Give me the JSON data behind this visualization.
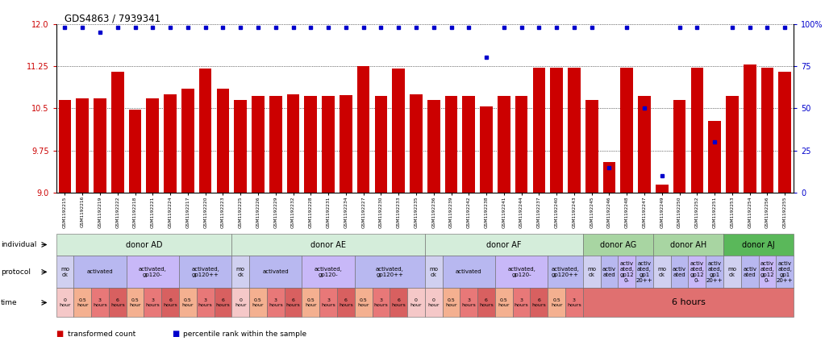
{
  "title": "GDS4863 / 7939341",
  "sample_ids": [
    "GSM1192215",
    "GSM1192216",
    "GSM1192219",
    "GSM1192222",
    "GSM1192218",
    "GSM1192221",
    "GSM1192224",
    "GSM1192217",
    "GSM1192220",
    "GSM1192223",
    "GSM1192225",
    "GSM1192226",
    "GSM1192229",
    "GSM1192232",
    "GSM1192228",
    "GSM1192231",
    "GSM1192234",
    "GSM1192227",
    "GSM1192230",
    "GSM1192233",
    "GSM1192235",
    "GSM1192236",
    "GSM1192239",
    "GSM1192242",
    "GSM1192238",
    "GSM1192241",
    "GSM1192244",
    "GSM1192237",
    "GSM1192240",
    "GSM1192243",
    "GSM1192245",
    "GSM1192246",
    "GSM1192248",
    "GSM1192247",
    "GSM1192249",
    "GSM1192250",
    "GSM1192252",
    "GSM1192251",
    "GSM1192253",
    "GSM1192254",
    "GSM1192256",
    "GSM1192255"
  ],
  "bar_values": [
    10.65,
    10.68,
    10.68,
    11.15,
    10.48,
    10.68,
    10.75,
    10.85,
    11.2,
    10.85,
    10.65,
    10.72,
    10.72,
    10.75,
    10.72,
    10.72,
    10.73,
    11.25,
    10.72,
    11.2,
    10.75,
    10.65,
    10.72,
    10.72,
    10.53,
    10.72,
    10.72,
    11.22,
    11.22,
    11.22,
    10.65,
    9.55,
    11.22,
    10.72,
    9.15,
    10.65,
    11.22,
    10.28,
    10.72,
    11.28,
    11.22,
    11.15
  ],
  "percentile_values": [
    98,
    98,
    95,
    98,
    98,
    98,
    98,
    98,
    98,
    98,
    98,
    98,
    98,
    98,
    98,
    98,
    98,
    98,
    98,
    98,
    98,
    98,
    98,
    98,
    80,
    98,
    98,
    98,
    98,
    98,
    98,
    15,
    98,
    50,
    10,
    98,
    98,
    30,
    98,
    98,
    98,
    98
  ],
  "ylim_left": [
    9.0,
    12.0
  ],
  "yticks_left": [
    9.0,
    9.75,
    10.5,
    11.25,
    12.0
  ],
  "ylim_right": [
    0,
    100
  ],
  "yticks_right": [
    0,
    25,
    50,
    75,
    100
  ],
  "bar_color": "#cc0000",
  "percentile_color": "#0000cc",
  "individual_row": [
    {
      "label": "donor AD",
      "start": 0,
      "end": 9,
      "color": "#d4edda"
    },
    {
      "label": "donor AE",
      "start": 10,
      "end": 20,
      "color": "#d4edda"
    },
    {
      "label": "donor AF",
      "start": 21,
      "end": 29,
      "color": "#d4edda"
    },
    {
      "label": "donor AG",
      "start": 30,
      "end": 33,
      "color": "#a8d5a2"
    },
    {
      "label": "donor AH",
      "start": 34,
      "end": 37,
      "color": "#a8d5a2"
    },
    {
      "label": "donor AJ",
      "start": 38,
      "end": 41,
      "color": "#5ab85a"
    }
  ],
  "protocol_row": [
    {
      "label": "mo\nck",
      "start": 0,
      "end": 0,
      "color": "#d0d0f0"
    },
    {
      "label": "activated",
      "start": 1,
      "end": 3,
      "color": "#b8b8f0"
    },
    {
      "label": "activated,\ngp120-",
      "start": 4,
      "end": 6,
      "color": "#c8b8f8"
    },
    {
      "label": "activated,\ngp120++",
      "start": 7,
      "end": 9,
      "color": "#b8b8f0"
    },
    {
      "label": "mo\nck",
      "start": 10,
      "end": 10,
      "color": "#d0d0f0"
    },
    {
      "label": "activated",
      "start": 11,
      "end": 13,
      "color": "#b8b8f0"
    },
    {
      "label": "activated,\ngp120-",
      "start": 14,
      "end": 16,
      "color": "#c8b8f8"
    },
    {
      "label": "activated,\ngp120++",
      "start": 17,
      "end": 20,
      "color": "#b8b8f0"
    },
    {
      "label": "mo\nck",
      "start": 21,
      "end": 21,
      "color": "#d0d0f0"
    },
    {
      "label": "activated",
      "start": 22,
      "end": 24,
      "color": "#b8b8f0"
    },
    {
      "label": "activated,\ngp120-",
      "start": 25,
      "end": 27,
      "color": "#c8b8f8"
    },
    {
      "label": "activated,\ngp120++",
      "start": 28,
      "end": 29,
      "color": "#b8b8f0"
    },
    {
      "label": "mo\nck",
      "start": 30,
      "end": 30,
      "color": "#d0d0f0"
    },
    {
      "label": "activ\nated",
      "start": 31,
      "end": 31,
      "color": "#b8b8f0"
    },
    {
      "label": "activ\nated,\ngp12\n0-",
      "start": 32,
      "end": 32,
      "color": "#c8b8f8"
    },
    {
      "label": "activ\nated,\ngp1\n20++",
      "start": 33,
      "end": 33,
      "color": "#b8b8f0"
    },
    {
      "label": "mo\nck",
      "start": 34,
      "end": 34,
      "color": "#d0d0f0"
    },
    {
      "label": "activ\nated",
      "start": 35,
      "end": 35,
      "color": "#b8b8f0"
    },
    {
      "label": "activ\nated,\ngp12\n0-",
      "start": 36,
      "end": 36,
      "color": "#c8b8f8"
    },
    {
      "label": "activ\nated,\ngp1\n20++",
      "start": 37,
      "end": 37,
      "color": "#b8b8f0"
    },
    {
      "label": "mo\nck",
      "start": 38,
      "end": 38,
      "color": "#d0d0f0"
    },
    {
      "label": "activ\nated",
      "start": 39,
      "end": 39,
      "color": "#b8b8f0"
    },
    {
      "label": "activ\nated,\ngp12\n0-",
      "start": 40,
      "end": 40,
      "color": "#c8b8f8"
    },
    {
      "label": "activ\nated,\ngp1\n20++",
      "start": 41,
      "end": 41,
      "color": "#b8b8f0"
    }
  ],
  "time_cells": [
    {
      "label": "0\nhour",
      "start": 0,
      "end": 0,
      "color": "#f5c8c8"
    },
    {
      "label": "0.5\nhour",
      "start": 1,
      "end": 1,
      "color": "#f4b090"
    },
    {
      "label": "3\nhours",
      "start": 2,
      "end": 2,
      "color": "#e87878"
    },
    {
      "label": "6\nhours",
      "start": 3,
      "end": 3,
      "color": "#d86060"
    },
    {
      "label": "0.5\nhour",
      "start": 4,
      "end": 4,
      "color": "#f4b090"
    },
    {
      "label": "3\nhours",
      "start": 5,
      "end": 5,
      "color": "#e87878"
    },
    {
      "label": "6\nhours",
      "start": 6,
      "end": 6,
      "color": "#d86060"
    },
    {
      "label": "0.5\nhour",
      "start": 7,
      "end": 7,
      "color": "#f4b090"
    },
    {
      "label": "3\nhours",
      "start": 8,
      "end": 8,
      "color": "#e87878"
    },
    {
      "label": "6\nhours",
      "start": 9,
      "end": 9,
      "color": "#d86060"
    },
    {
      "label": "0\nhour",
      "start": 10,
      "end": 10,
      "color": "#f5c8c8"
    },
    {
      "label": "0.5\nhour",
      "start": 11,
      "end": 11,
      "color": "#f4b090"
    },
    {
      "label": "3\nhours",
      "start": 12,
      "end": 12,
      "color": "#e87878"
    },
    {
      "label": "6\nhours",
      "start": 13,
      "end": 13,
      "color": "#d86060"
    },
    {
      "label": "0.5\nhour",
      "start": 14,
      "end": 14,
      "color": "#f4b090"
    },
    {
      "label": "3\nhours",
      "start": 15,
      "end": 15,
      "color": "#e87878"
    },
    {
      "label": "6\nhours",
      "start": 16,
      "end": 16,
      "color": "#d86060"
    },
    {
      "label": "0.5\nhour",
      "start": 17,
      "end": 17,
      "color": "#f4b090"
    },
    {
      "label": "3\nhours",
      "start": 18,
      "end": 18,
      "color": "#e87878"
    },
    {
      "label": "6\nhours",
      "start": 19,
      "end": 19,
      "color": "#d86060"
    },
    {
      "label": "0\nhour",
      "start": 20,
      "end": 20,
      "color": "#f5c8c8"
    },
    {
      "label": "0\nhour",
      "start": 21,
      "end": 21,
      "color": "#f5c8c8"
    },
    {
      "label": "0.5\nhour",
      "start": 22,
      "end": 22,
      "color": "#f4b090"
    },
    {
      "label": "3\nhours",
      "start": 23,
      "end": 23,
      "color": "#e87878"
    },
    {
      "label": "6\nhours",
      "start": 24,
      "end": 24,
      "color": "#d86060"
    },
    {
      "label": "0.5\nhour",
      "start": 25,
      "end": 25,
      "color": "#f4b090"
    },
    {
      "label": "3\nhours",
      "start": 26,
      "end": 26,
      "color": "#e87878"
    },
    {
      "label": "6\nhours",
      "start": 27,
      "end": 27,
      "color": "#d86060"
    },
    {
      "label": "0.5\nhour",
      "start": 28,
      "end": 28,
      "color": "#f4b090"
    },
    {
      "label": "3\nhours",
      "start": 29,
      "end": 29,
      "color": "#e87878"
    }
  ],
  "time_big_label": {
    "label": "6 hours",
    "start": 30,
    "end": 41,
    "color": "#e07070"
  },
  "background_color": "#ffffff",
  "tick_color_left": "#cc0000",
  "tick_color_right": "#0000cc"
}
